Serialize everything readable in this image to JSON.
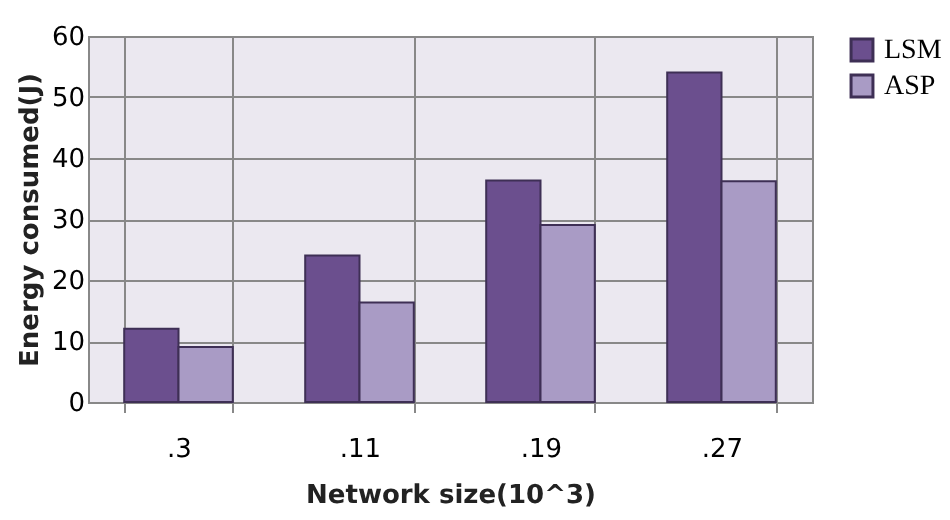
{
  "chart_data": {
    "type": "bar",
    "xlabel": "Network size(10^3)",
    "ylabel": "Energy consumed(J)",
    "categories": [
      ".3",
      ".11",
      ".19",
      ".27"
    ],
    "series": [
      {
        "name": "LSM",
        "color": "#6b4f8e",
        "values": [
          12,
          24,
          36.3,
          54
        ]
      },
      {
        "name": "ASP",
        "color": "#a99bc5",
        "values": [
          9,
          16.3,
          29,
          36.2
        ]
      }
    ],
    "ylim": [
      0,
      60
    ],
    "yticks": [
      0,
      10,
      20,
      30,
      40,
      50,
      60
    ],
    "grid": true,
    "legend": "right"
  }
}
